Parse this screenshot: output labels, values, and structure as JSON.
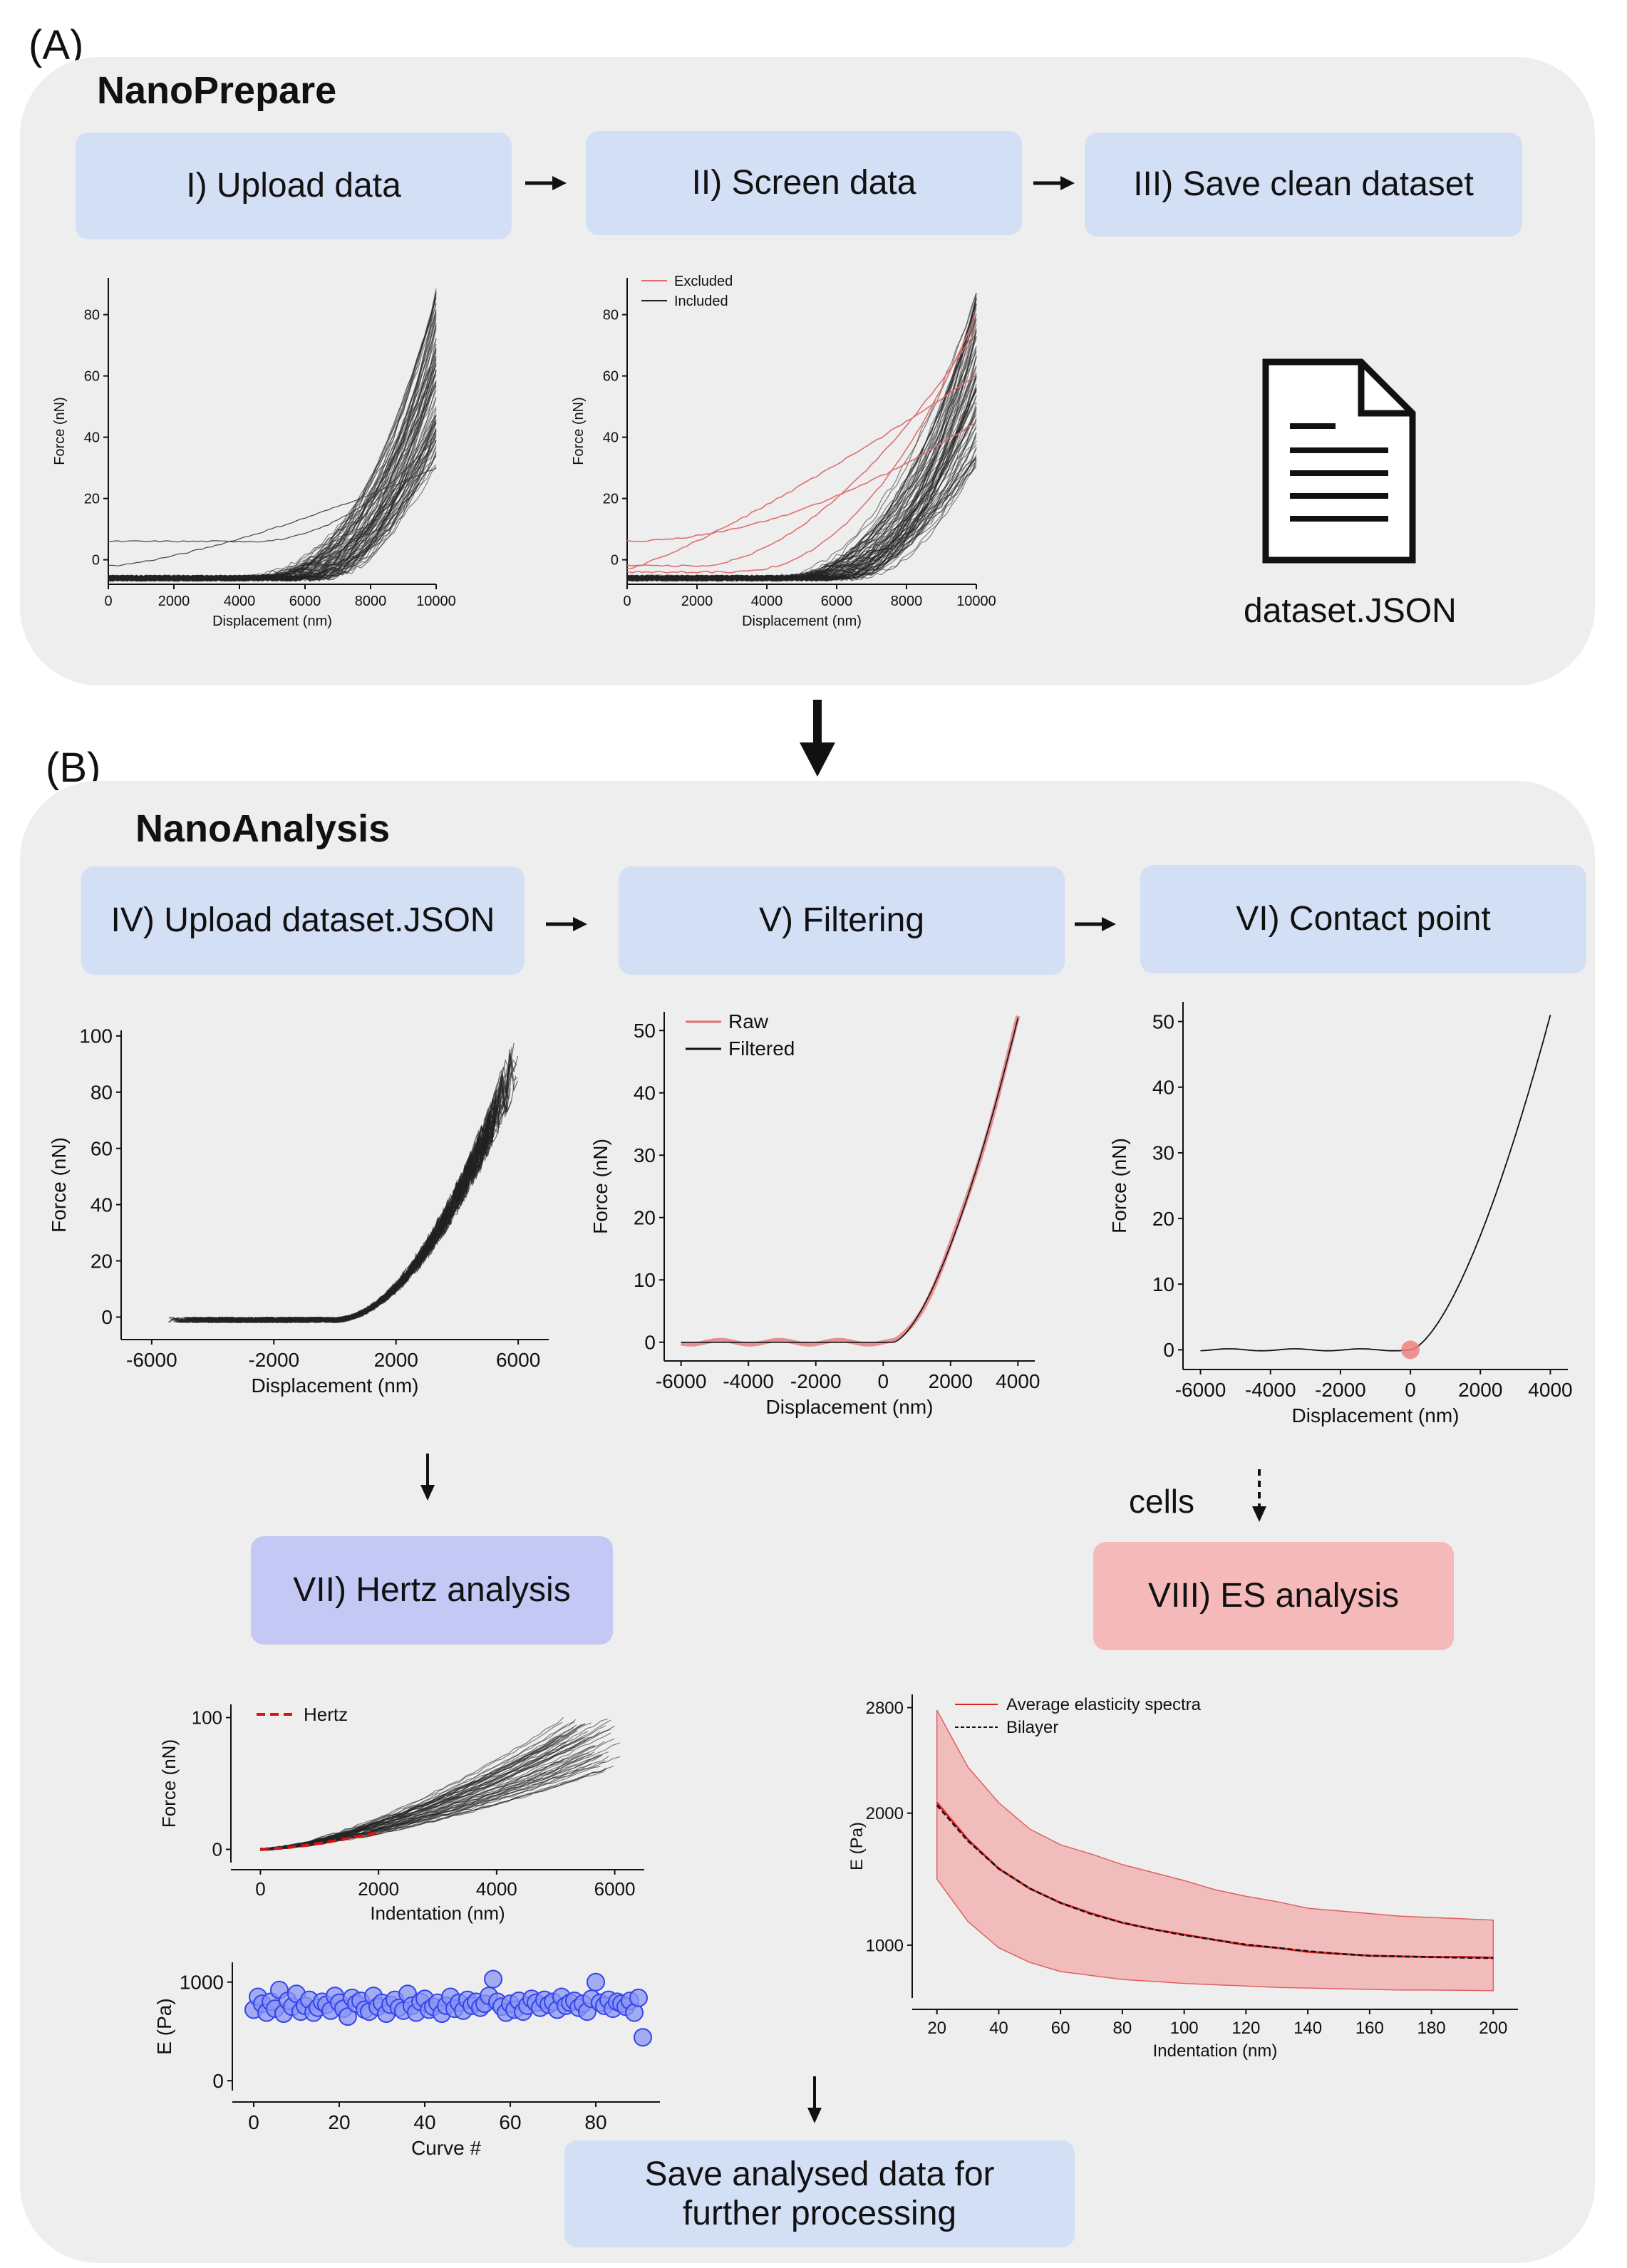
{
  "panel_a": {
    "label": "(A)",
    "title": "NanoPrepare",
    "steps": [
      "I) Upload data",
      "II) Screen data",
      "III) Save clean dataset"
    ],
    "file_label": "dataset.JSON",
    "file_icon": "document-icon"
  },
  "panel_b": {
    "label": "(B)",
    "title": "NanoAnalysis",
    "steps": [
      "IV) Upload dataset.JSON",
      "V) Filtering",
      "VI) Contact point"
    ],
    "hertz_step": "VII) Hertz analysis",
    "es_step": "VIII) ES analysis",
    "cells_label": "cells",
    "save_step": "Save analysed data for further processing",
    "colors": {
      "hertz_box": "#c3c8f4",
      "es_box": "#f4b9b8",
      "step_box": "#d3dff5"
    }
  },
  "chart_data": [
    {
      "id": "upload_raw",
      "type": "line",
      "xlabel": "Displacement (nm)",
      "ylabel": "Force (nN)",
      "xlim": [
        0,
        10000
      ],
      "ylim": [
        -8,
        92
      ],
      "xticks": [
        "0",
        "2000",
        "4000",
        "6000",
        "8000",
        "10000"
      ],
      "yticks": [
        "0",
        "20",
        "40",
        "60",
        "80"
      ],
      "series_description": "~80 overlaid force–displacement curves, flat near -6 nN until ~4500 nm then rising to 30–88 nN at 10000 nm",
      "color": "#222222"
    },
    {
      "id": "screen",
      "type": "line",
      "xlabel": "Displacement (nm)",
      "ylabel": "Force (nN)",
      "xlim": [
        0,
        10000
      ],
      "ylim": [
        -8,
        92
      ],
      "xticks": [
        "0",
        "2000",
        "4000",
        "6000",
        "8000",
        "10000"
      ],
      "yticks": [
        "0",
        "20",
        "40",
        "60",
        "80"
      ],
      "legend": [
        {
          "name": "Excluded",
          "color": "#e07070"
        },
        {
          "name": "Included",
          "color": "#222222"
        }
      ]
    },
    {
      "id": "nano_upload",
      "type": "line",
      "xlabel": "Displacement (nm)",
      "ylabel": "Force (nN)",
      "xlim": [
        -7000,
        7000
      ],
      "ylim": [
        -8,
        102
      ],
      "xticks": [
        "-6000",
        "-2000",
        "2000",
        "6000"
      ],
      "yticks": [
        "0",
        "20",
        "40",
        "60",
        "80",
        "100"
      ]
    },
    {
      "id": "filtering",
      "type": "line",
      "xlabel": "Displacement (nm)",
      "ylabel": "Force (nN)",
      "xlim": [
        -6500,
        4500
      ],
      "ylim": [
        -3,
        53
      ],
      "xticks": [
        "-6000",
        "-4000",
        "-2000",
        "0",
        "2000",
        "4000"
      ],
      "yticks": [
        "0",
        "10",
        "20",
        "30",
        "40",
        "50"
      ],
      "legend": [
        {
          "name": "Raw",
          "color": "#e07070"
        },
        {
          "name": "Filtered",
          "color": "#111111"
        }
      ]
    },
    {
      "id": "contact",
      "type": "line",
      "xlabel": "Displacement (nm)",
      "ylabel": "Force (nN)",
      "xlim": [
        -6500,
        4500
      ],
      "ylim": [
        -3,
        53
      ],
      "xticks": [
        "-6000",
        "-4000",
        "-2000",
        "0",
        "2000",
        "4000"
      ],
      "yticks": [
        "0",
        "10",
        "20",
        "30",
        "40",
        "50"
      ],
      "contact_point": [
        0,
        0
      ]
    },
    {
      "id": "hertz_fit",
      "type": "line",
      "xlabel": "Indentation (nm)",
      "ylabel": "Force (nN)",
      "xlim": [
        -500,
        6500
      ],
      "ylim": [
        -10,
        110
      ],
      "xticks": [
        "0",
        "2000",
        "4000",
        "6000"
      ],
      "yticks": [
        "0",
        "100"
      ],
      "legend": [
        {
          "name": "Hertz",
          "color": "#dd1111"
        }
      ]
    },
    {
      "id": "hertz_e",
      "type": "scatter",
      "xlabel": "Curve #",
      "ylabel": "E (Pa)",
      "xlim": [
        -5,
        95
      ],
      "ylim": [
        -100,
        1200
      ],
      "xticks": [
        "0",
        "20",
        "40",
        "60",
        "80"
      ],
      "yticks": [
        "0",
        "1000"
      ],
      "values": [
        720,
        850,
        780,
        690,
        800,
        730,
        920,
        680,
        810,
        750,
        880,
        700,
        760,
        820,
        690,
        740,
        800,
        770,
        710,
        860,
        790,
        730,
        650,
        840,
        780,
        810,
        720,
        700,
        860,
        750,
        790,
        680,
        770,
        820,
        740,
        710,
        880,
        760,
        690,
        800,
        830,
        720,
        750,
        790,
        680,
        760,
        850,
        730,
        790,
        710,
        820,
        760,
        800,
        740,
        780,
        860,
        1030,
        800,
        750,
        690,
        780,
        720,
        810,
        700,
        760,
        830,
        790,
        740,
        820,
        770,
        800,
        720,
        850,
        760,
        790,
        810,
        740,
        780,
        700,
        830,
        1000,
        790,
        760,
        820,
        730,
        800,
        780,
        750,
        810,
        690,
        840,
        440
      ],
      "color": "#3344ee"
    },
    {
      "id": "es_spectra",
      "type": "line",
      "xlabel": "Indentation (nm)",
      "ylabel": "E (Pa)",
      "xlim": [
        12,
        208
      ],
      "ylim": [
        600,
        2900
      ],
      "xticks": [
        "20",
        "40",
        "60",
        "80",
        "100",
        "120",
        "140",
        "160",
        "180",
        "200"
      ],
      "yticks": [
        "1000",
        "2000",
        "2800"
      ],
      "x": [
        20,
        30,
        40,
        50,
        60,
        70,
        80,
        90,
        100,
        110,
        120,
        130,
        140,
        150,
        160,
        170,
        180,
        190,
        200
      ],
      "mean": [
        2080,
        1800,
        1580,
        1430,
        1320,
        1240,
        1170,
        1120,
        1080,
        1040,
        1000,
        980,
        950,
        935,
        920,
        915,
        910,
        910,
        905
      ],
      "lower": [
        1500,
        1180,
        980,
        870,
        800,
        770,
        740,
        725,
        710,
        700,
        690,
        680,
        675,
        670,
        665,
        660,
        660,
        658,
        655
      ],
      "upper": [
        2780,
        2350,
        2080,
        1880,
        1760,
        1690,
        1610,
        1550,
        1490,
        1420,
        1370,
        1330,
        1280,
        1260,
        1240,
        1220,
        1210,
        1200,
        1190
      ],
      "bilayer": [
        2060,
        1790,
        1580,
        1430,
        1320,
        1235,
        1170,
        1120,
        1075,
        1040,
        1005,
        980,
        955,
        935,
        920,
        915,
        910,
        905,
        902
      ],
      "legend": [
        {
          "name": "Average elasticity spectra",
          "color": "#dd2222"
        },
        {
          "name": "Bilayer",
          "color": "#111111"
        }
      ]
    }
  ]
}
